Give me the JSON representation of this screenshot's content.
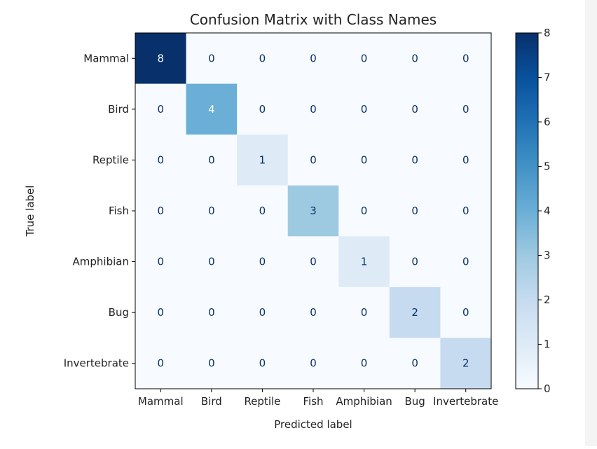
{
  "chart_data": {
    "type": "heatmap",
    "title": "Confusion Matrix with Class Names",
    "xlabel": "Predicted label",
    "ylabel": "True label",
    "x_categories": [
      "Mammal",
      "Bird",
      "Reptile",
      "Fish",
      "Amphibian",
      "Bug",
      "Invertebrate"
    ],
    "y_categories": [
      "Mammal",
      "Bird",
      "Reptile",
      "Fish",
      "Amphibian",
      "Bug",
      "Invertebrate"
    ],
    "values": [
      [
        8,
        0,
        0,
        0,
        0,
        0,
        0
      ],
      [
        0,
        4,
        0,
        0,
        0,
        0,
        0
      ],
      [
        0,
        0,
        1,
        0,
        0,
        0,
        0
      ],
      [
        0,
        0,
        0,
        3,
        0,
        0,
        0
      ],
      [
        0,
        0,
        0,
        0,
        1,
        0,
        0
      ],
      [
        0,
        0,
        0,
        0,
        0,
        2,
        0
      ],
      [
        0,
        0,
        0,
        0,
        0,
        0,
        2
      ]
    ],
    "colormap": "Blues",
    "colorbar": {
      "min": 0,
      "max": 8,
      "ticks": [
        0,
        1,
        2,
        3,
        4,
        5,
        6,
        7,
        8
      ]
    },
    "grid": false
  }
}
